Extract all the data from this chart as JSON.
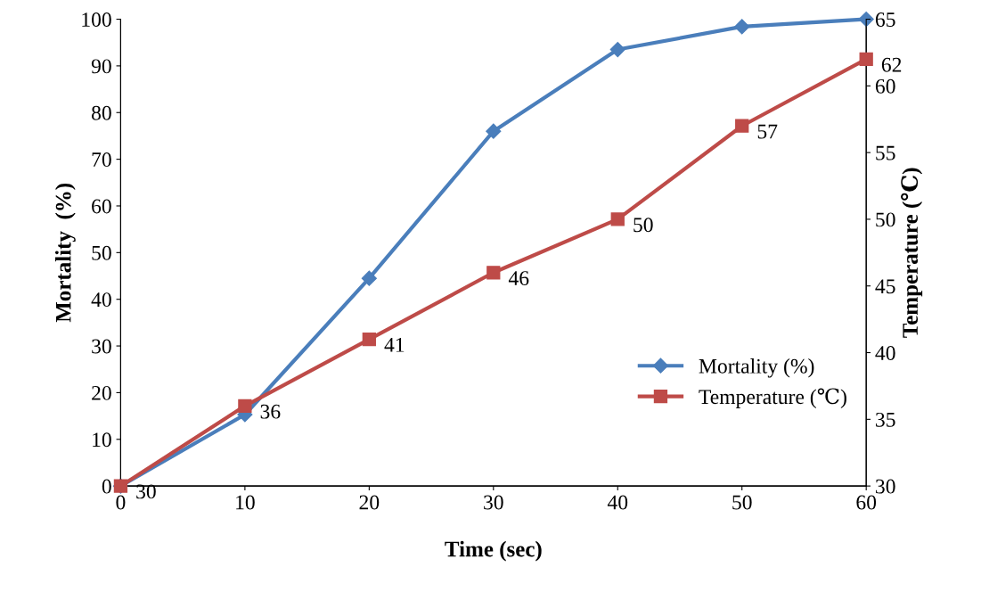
{
  "chart_data": {
    "type": "line",
    "xlabel": "Time (sec)",
    "ylabel": "Mortality  (%)",
    "y2label": "Temperature (℃)",
    "x": [
      0,
      10,
      20,
      30,
      40,
      50,
      60
    ],
    "series": [
      {
        "name": "Mortality (%)",
        "color": "#4a7ebb",
        "marker": "diamond",
        "values": [
          0,
          15.3,
          44.5,
          76,
          93.5,
          98.4,
          100
        ]
      },
      {
        "name": "Temperature (℃)",
        "color": "#be4b48",
        "marker": "square",
        "axis": "y2",
        "values": [
          30,
          36,
          41,
          46,
          50,
          57,
          62
        ],
        "value_labels": [
          "30",
          "36",
          "41",
          "46",
          "50",
          "57",
          "62"
        ]
      }
    ],
    "xlim": [
      0,
      60
    ],
    "xticks": [
      0,
      10,
      20,
      30,
      40,
      50,
      60
    ],
    "ylim": [
      0,
      100
    ],
    "yticks": [
      0,
      10,
      20,
      30,
      40,
      50,
      60,
      70,
      80,
      90,
      100
    ],
    "y2lim": [
      30,
      65
    ],
    "y2ticks": [
      30,
      35,
      40,
      45,
      50,
      55,
      60,
      65
    ],
    "legend": "center right",
    "grid": false,
    "line_style": "solid"
  }
}
